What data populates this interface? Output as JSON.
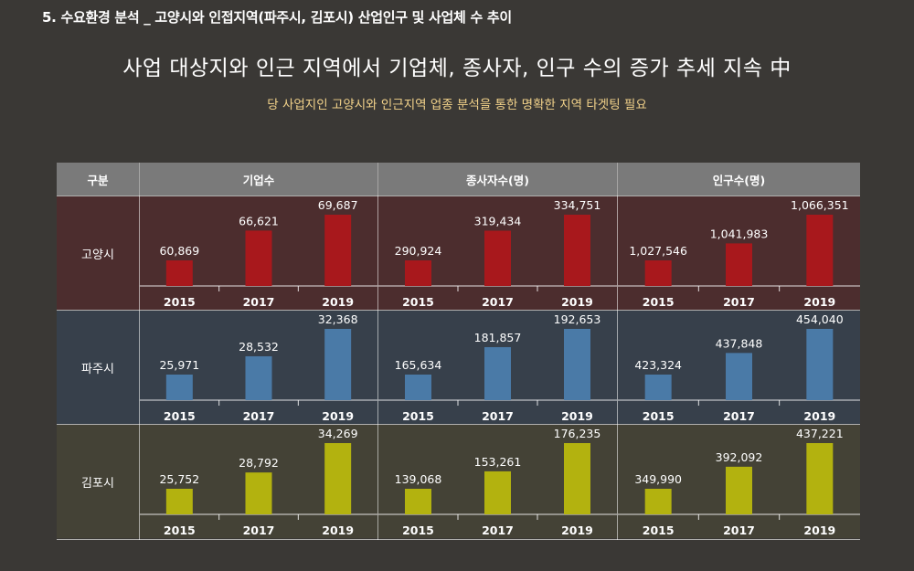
{
  "page": {
    "section_title": "5. 수요환경 분석 _ 고양시와 인접지역(파주시, 김포시) 산업인구 및 사업체 수 추이",
    "headline": "사업 대상지와 인근 지역에서 기업체, 종사자, 인구 수의 증가 추세 지속 中",
    "subline": "당 사업지인 고양시와 인근지역 업종 분석을 통한 명확한 지역 타겟팅 필요"
  },
  "table": {
    "header_region": "구분",
    "columns": [
      "기업수",
      "종사자수(명)",
      "인구수(명)"
    ],
    "rows": [
      {
        "region": "고양시",
        "color": "#a8181c",
        "bg": "#4c2d2e"
      },
      {
        "region": "파주시",
        "color": "#4a7aa7",
        "bg": "#37404b"
      },
      {
        "region": "김포시",
        "color": "#b3b20f",
        "bg": "#444236"
      }
    ]
  },
  "chart_data": [
    {
      "type": "bar",
      "region": "고양시",
      "metric": "기업수",
      "categories": [
        "2015",
        "2017",
        "2019"
      ],
      "values": [
        60869,
        66621,
        69687
      ],
      "labels": [
        "60,869",
        "66,621",
        "69,687"
      ]
    },
    {
      "type": "bar",
      "region": "고양시",
      "metric": "종사자수(명)",
      "categories": [
        "2015",
        "2017",
        "2019"
      ],
      "values": [
        290924,
        319434,
        334751
      ],
      "labels": [
        "290,924",
        "319,434",
        "334,751"
      ]
    },
    {
      "type": "bar",
      "region": "고양시",
      "metric": "인구수(명)",
      "categories": [
        "2015",
        "2017",
        "2019"
      ],
      "values": [
        1027546,
        1041983,
        1066351
      ],
      "labels": [
        "1,027,546",
        "1,041,983",
        "1,066,351"
      ]
    },
    {
      "type": "bar",
      "region": "파주시",
      "metric": "기업수",
      "categories": [
        "2015",
        "2017",
        "2019"
      ],
      "values": [
        25971,
        28532,
        32368
      ],
      "labels": [
        "25,971",
        "28,532",
        "32,368"
      ]
    },
    {
      "type": "bar",
      "region": "파주시",
      "metric": "종사자수(명)",
      "categories": [
        "2015",
        "2017",
        "2019"
      ],
      "values": [
        165634,
        181857,
        192653
      ],
      "labels": [
        "165,634",
        "181,857",
        "192,653"
      ]
    },
    {
      "type": "bar",
      "region": "파주시",
      "metric": "인구수(명)",
      "categories": [
        "2015",
        "2017",
        "2019"
      ],
      "values": [
        423324,
        437848,
        454040
      ],
      "labels": [
        "423,324",
        "437,848",
        "454,040"
      ]
    },
    {
      "type": "bar",
      "region": "김포시",
      "metric": "기업수",
      "categories": [
        "2015",
        "2017",
        "2019"
      ],
      "values": [
        25752,
        28792,
        34269
      ],
      "labels": [
        "25,752",
        "28,792",
        "34,269"
      ]
    },
    {
      "type": "bar",
      "region": "김포시",
      "metric": "종사자수(명)",
      "categories": [
        "2015",
        "2017",
        "2019"
      ],
      "values": [
        139068,
        153261,
        176235
      ],
      "labels": [
        "139,068",
        "153,261",
        "176,235"
      ]
    },
    {
      "type": "bar",
      "region": "김포시",
      "metric": "인구수(명)",
      "categories": [
        "2015",
        "2017",
        "2019"
      ],
      "values": [
        349990,
        392092,
        437221
      ],
      "labels": [
        "349,990",
        "392,092",
        "437,221"
      ]
    }
  ]
}
